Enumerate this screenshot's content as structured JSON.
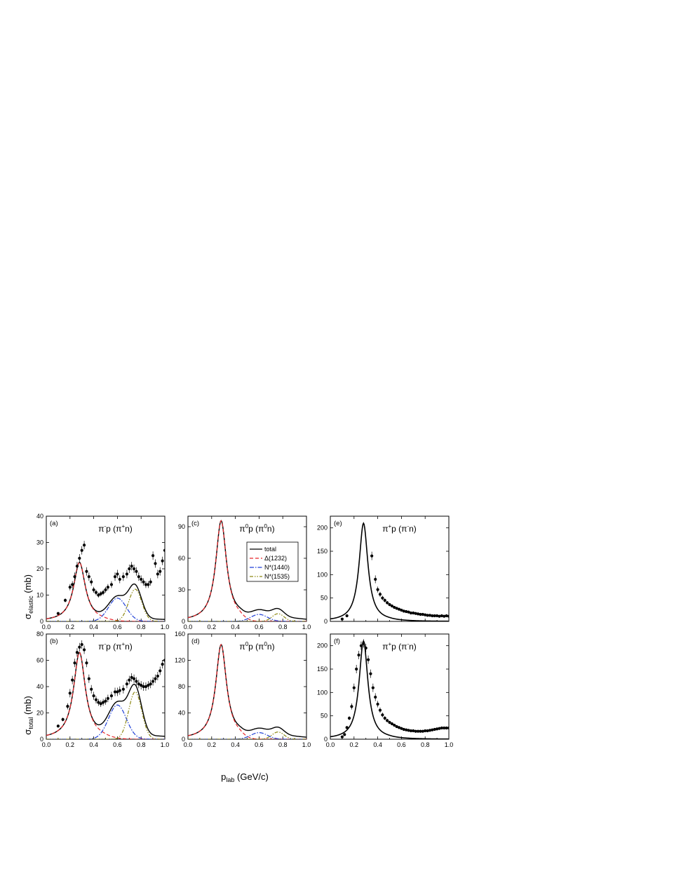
{
  "figure": {
    "ylabel_top_main": "σ",
    "ylabel_top_sub": "elastic",
    "ylabel_top_unit": "(mb)",
    "ylabel_bottom_main": "σ",
    "ylabel_bottom_sub": "total",
    "ylabel_bottom_unit": "(mb)",
    "xlabel_main": "p",
    "xlabel_sub": "lab",
    "xlabel_unit": "(GeV/c)"
  },
  "legend": {
    "items": [
      {
        "label": "total",
        "color": "#000000",
        "dash": ""
      },
      {
        "label": "Δ(1232)",
        "color": "#e8262a",
        "dash": "5,3"
      },
      {
        "label": "N*(1440)",
        "color": "#1f3fd6",
        "dash": "6,2,1.5,2"
      },
      {
        "label": "N*(1535)",
        "color": "#8f8a16",
        "dash": "5,2,1.5,2,1.5,2"
      }
    ]
  },
  "chart_data": [
    {
      "panel": "(a)",
      "type": "line",
      "title": {
        "a": "π",
        "a_sup": "-",
        "b": "p (π",
        "b_sup": "+",
        "c": "n)"
      },
      "xlim": [
        0,
        1
      ],
      "ylim": [
        0,
        40
      ],
      "xticks": [
        "0.0",
        "0.2",
        "0.4",
        "0.6",
        "0.8",
        "1.0"
      ],
      "yticks": [
        "0",
        "10",
        "20",
        "30",
        "40"
      ],
      "scale": 0.34,
      "data_points": [
        [
          0.1,
          3
        ],
        [
          0.16,
          8
        ],
        [
          0.2,
          13
        ],
        [
          0.22,
          14
        ],
        [
          0.24,
          17
        ],
        [
          0.26,
          21
        ],
        [
          0.28,
          24
        ],
        [
          0.3,
          27
        ],
        [
          0.32,
          29
        ],
        [
          0.34,
          19
        ],
        [
          0.36,
          17
        ],
        [
          0.38,
          15
        ],
        [
          0.4,
          12
        ],
        [
          0.42,
          11
        ],
        [
          0.44,
          10
        ],
        [
          0.46,
          10.5
        ],
        [
          0.48,
          11
        ],
        [
          0.5,
          12
        ],
        [
          0.52,
          13
        ],
        [
          0.55,
          14
        ],
        [
          0.58,
          17
        ],
        [
          0.6,
          18
        ],
        [
          0.62,
          16
        ],
        [
          0.65,
          17
        ],
        [
          0.68,
          18
        ],
        [
          0.7,
          20
        ],
        [
          0.72,
          21
        ],
        [
          0.74,
          20
        ],
        [
          0.76,
          19
        ],
        [
          0.78,
          17
        ],
        [
          0.8,
          16
        ],
        [
          0.82,
          15
        ],
        [
          0.84,
          14
        ],
        [
          0.86,
          14
        ],
        [
          0.88,
          15
        ],
        [
          0.9,
          25
        ],
        [
          0.92,
          22
        ],
        [
          0.94,
          18
        ],
        [
          0.96,
          19
        ],
        [
          0.98,
          23
        ],
        [
          1.0,
          27
        ]
      ]
    },
    {
      "panel": "(b)",
      "type": "line",
      "title": {
        "a": "π",
        "a_sup": "-",
        "b": "p (π",
        "b_sup": "+",
        "c": "n)"
      },
      "xlim": [
        0,
        1
      ],
      "ylim": [
        0,
        80
      ],
      "xticks": [
        "0.0",
        "0.2",
        "0.4",
        "0.6",
        "0.8",
        "1.0"
      ],
      "yticks": [
        "0",
        "20",
        "40",
        "60",
        "80"
      ],
      "scale": 1.0,
      "data_points": [
        [
          0.1,
          10
        ],
        [
          0.14,
          15
        ],
        [
          0.18,
          25
        ],
        [
          0.2,
          35
        ],
        [
          0.22,
          45
        ],
        [
          0.24,
          58
        ],
        [
          0.26,
          66
        ],
        [
          0.28,
          70
        ],
        [
          0.3,
          72
        ],
        [
          0.32,
          68
        ],
        [
          0.34,
          58
        ],
        [
          0.36,
          46
        ],
        [
          0.38,
          38
        ],
        [
          0.4,
          33
        ],
        [
          0.42,
          30
        ],
        [
          0.44,
          28
        ],
        [
          0.46,
          27
        ],
        [
          0.48,
          28
        ],
        [
          0.5,
          29
        ],
        [
          0.52,
          31
        ],
        [
          0.55,
          33
        ],
        [
          0.58,
          36
        ],
        [
          0.6,
          36
        ],
        [
          0.62,
          37
        ],
        [
          0.65,
          38
        ],
        [
          0.68,
          42
        ],
        [
          0.7,
          45
        ],
        [
          0.72,
          47
        ],
        [
          0.74,
          46
        ],
        [
          0.76,
          44
        ],
        [
          0.78,
          42
        ],
        [
          0.8,
          41
        ],
        [
          0.82,
          40
        ],
        [
          0.84,
          40
        ],
        [
          0.86,
          41
        ],
        [
          0.88,
          42
        ],
        [
          0.9,
          44
        ],
        [
          0.92,
          46
        ],
        [
          0.94,
          48
        ],
        [
          0.96,
          52
        ],
        [
          0.98,
          57
        ],
        [
          1.0,
          60
        ]
      ]
    },
    {
      "panel": "(c)",
      "type": "line",
      "title": {
        "a": "π",
        "a_sup": "0",
        "b": "p (π",
        "b_sup": "0",
        "c": "n)"
      },
      "xlim": [
        0,
        1
      ],
      "ylim": [
        0,
        100
      ],
      "xticks": [
        "0.0",
        "0.2",
        "0.4",
        "0.6",
        "0.8",
        "1.0"
      ],
      "yticks": [
        "0",
        "30",
        "60",
        "90"
      ],
      "scale": 1.33,
      "data_points": []
    },
    {
      "panel": "(d)",
      "type": "line",
      "title": {
        "a": "π",
        "a_sup": "0",
        "b": "p (π",
        "b_sup": "0",
        "c": "n)"
      },
      "xlim": [
        0,
        1
      ],
      "ylim": [
        0,
        160
      ],
      "xticks": [
        "0.0",
        "0.2",
        "0.4",
        "0.6",
        "0.8",
        "1.0"
      ],
      "yticks": [
        "0",
        "40",
        "80",
        "120",
        "160"
      ],
      "scale": 2.0,
      "data_points": []
    },
    {
      "panel": "(e)",
      "type": "line",
      "title": {
        "a": "π",
        "a_sup": "+",
        "b": "p (π",
        "b_sup": "-",
        "c": "n)"
      },
      "xlim": [
        0,
        1
      ],
      "ylim": [
        0,
        225
      ],
      "xticks": [],
      "yticks": [
        "0",
        "50",
        "100",
        "150",
        "200"
      ],
      "data_points": [
        [
          0.1,
          5
        ],
        [
          0.14,
          12
        ],
        [
          0.35,
          140
        ],
        [
          0.38,
          90
        ],
        [
          0.4,
          68
        ],
        [
          0.42,
          58
        ],
        [
          0.44,
          50
        ],
        [
          0.46,
          45
        ],
        [
          0.48,
          40
        ],
        [
          0.5,
          36
        ],
        [
          0.52,
          33
        ],
        [
          0.54,
          30
        ],
        [
          0.56,
          28
        ],
        [
          0.58,
          26
        ],
        [
          0.6,
          24
        ],
        [
          0.62,
          22
        ],
        [
          0.64,
          21
        ],
        [
          0.66,
          20
        ],
        [
          0.68,
          18
        ],
        [
          0.7,
          18
        ],
        [
          0.72,
          17
        ],
        [
          0.74,
          16
        ],
        [
          0.76,
          15
        ],
        [
          0.78,
          15
        ],
        [
          0.8,
          14
        ],
        [
          0.82,
          13
        ],
        [
          0.84,
          13
        ],
        [
          0.86,
          12
        ],
        [
          0.88,
          12
        ],
        [
          0.9,
          12
        ],
        [
          0.92,
          11
        ],
        [
          0.94,
          12
        ],
        [
          0.96,
          11
        ],
        [
          0.98,
          12
        ],
        [
          1.0,
          11
        ]
      ]
    },
    {
      "panel": "(f)",
      "type": "line",
      "title": {
        "a": "π",
        "a_sup": "+",
        "b": "p (π",
        "b_sup": "-",
        "c": "n)"
      },
      "xlim": [
        0,
        1
      ],
      "ylim": [
        0,
        225
      ],
      "xticks": [
        "0.0",
        "0.2",
        "0.4",
        "0.6",
        "0.8",
        "1.0"
      ],
      "yticks": [
        "0",
        "50",
        "100",
        "150",
        "200"
      ],
      "data_points": [
        [
          0.1,
          5
        ],
        [
          0.12,
          10
        ],
        [
          0.14,
          25
        ],
        [
          0.16,
          45
        ],
        [
          0.18,
          70
        ],
        [
          0.2,
          110
        ],
        [
          0.22,
          150
        ],
        [
          0.24,
          180
        ],
        [
          0.26,
          200
        ],
        [
          0.28,
          205
        ],
        [
          0.3,
          195
        ],
        [
          0.32,
          170
        ],
        [
          0.34,
          140
        ],
        [
          0.36,
          110
        ],
        [
          0.38,
          90
        ],
        [
          0.4,
          75
        ],
        [
          0.42,
          62
        ],
        [
          0.44,
          52
        ],
        [
          0.46,
          45
        ],
        [
          0.48,
          40
        ],
        [
          0.5,
          36
        ],
        [
          0.52,
          33
        ],
        [
          0.54,
          30
        ],
        [
          0.56,
          27
        ],
        [
          0.58,
          25
        ],
        [
          0.6,
          23
        ],
        [
          0.62,
          21
        ],
        [
          0.64,
          20
        ],
        [
          0.66,
          19
        ],
        [
          0.68,
          18
        ],
        [
          0.7,
          18
        ],
        [
          0.72,
          17
        ],
        [
          0.74,
          17
        ],
        [
          0.76,
          17
        ],
        [
          0.78,
          17
        ],
        [
          0.8,
          18
        ],
        [
          0.82,
          18
        ],
        [
          0.84,
          19
        ],
        [
          0.86,
          20
        ],
        [
          0.88,
          21
        ],
        [
          0.9,
          22
        ],
        [
          0.92,
          23
        ],
        [
          0.94,
          24
        ],
        [
          0.96,
          24
        ],
        [
          0.98,
          24
        ],
        [
          1.0,
          24
        ]
      ]
    }
  ]
}
